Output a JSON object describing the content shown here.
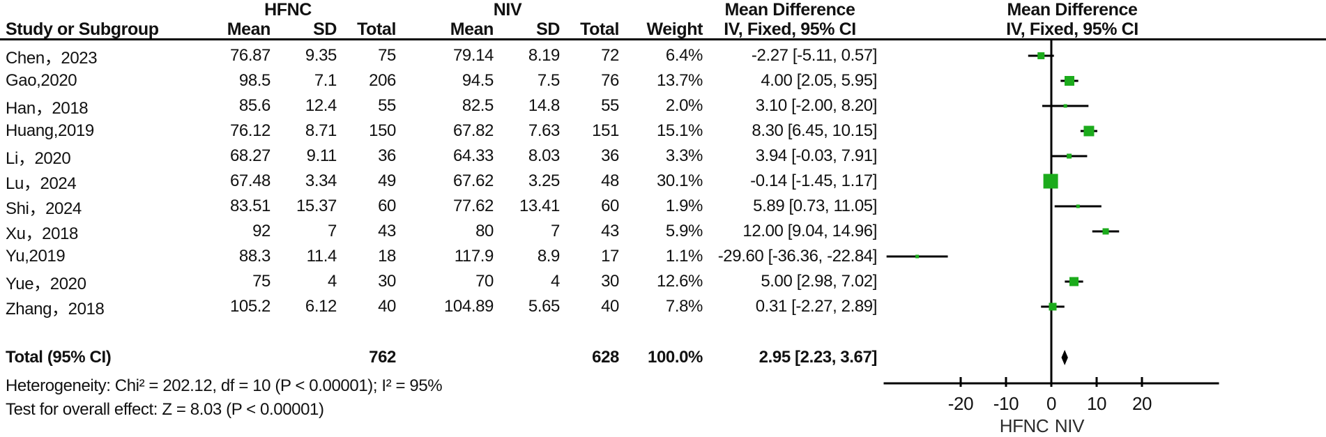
{
  "header": {
    "study_col": "Study or Subgroup",
    "group1": "HFNC",
    "group2": "NIV",
    "sub_cols": {
      "mean": "Mean",
      "sd": "SD",
      "total": "Total",
      "weight": "Weight"
    },
    "md_title": "Mean Difference",
    "method": "IV, Fixed, 95% CI"
  },
  "chart_data": {
    "type": "forest",
    "effect_measure": "Mean Difference",
    "model": "IV, Fixed, 95% CI",
    "studies": [
      {
        "name": "Chen，2023",
        "hfnc_mean": "76.87",
        "hfnc_sd": "9.35",
        "hfnc_total": "75",
        "niv_mean": "79.14",
        "niv_sd": "8.19",
        "niv_total": "72",
        "weight": "6.4%",
        "weight_value": 6.4,
        "md": -2.27,
        "lo": -5.11,
        "hi": 0.57,
        "ci_label": "-2.27 [-5.11, 0.57]"
      },
      {
        "name": "Gao,2020",
        "hfnc_mean": "98.5",
        "hfnc_sd": "7.1",
        "hfnc_total": "206",
        "niv_mean": "94.5",
        "niv_sd": "7.5",
        "niv_total": "76",
        "weight": "13.7%",
        "weight_value": 13.7,
        "md": 4.0,
        "lo": 2.05,
        "hi": 5.95,
        "ci_label": "4.00 [2.05, 5.95]"
      },
      {
        "name": "Han，2018",
        "hfnc_mean": "85.6",
        "hfnc_sd": "12.4",
        "hfnc_total": "55",
        "niv_mean": "82.5",
        "niv_sd": "14.8",
        "niv_total": "55",
        "weight": "2.0%",
        "weight_value": 2.0,
        "md": 3.1,
        "lo": -2.0,
        "hi": 8.2,
        "ci_label": "3.10 [-2.00, 8.20]"
      },
      {
        "name": "Huang,2019",
        "hfnc_mean": "76.12",
        "hfnc_sd": "8.71",
        "hfnc_total": "150",
        "niv_mean": "67.82",
        "niv_sd": "7.63",
        "niv_total": "151",
        "weight": "15.1%",
        "weight_value": 15.1,
        "md": 8.3,
        "lo": 6.45,
        "hi": 10.15,
        "ci_label": "8.30 [6.45, 10.15]"
      },
      {
        "name": "Li，2020",
        "hfnc_mean": "68.27",
        "hfnc_sd": "9.11",
        "hfnc_total": "36",
        "niv_mean": "64.33",
        "niv_sd": "8.03",
        "niv_total": "36",
        "weight": "3.3%",
        "weight_value": 3.3,
        "md": 3.94,
        "lo": -0.03,
        "hi": 7.91,
        "ci_label": "3.94 [-0.03, 7.91]"
      },
      {
        "name": "Lu，2024",
        "hfnc_mean": "67.48",
        "hfnc_sd": "3.34",
        "hfnc_total": "49",
        "niv_mean": "67.62",
        "niv_sd": "3.25",
        "niv_total": "48",
        "weight": "30.1%",
        "weight_value": 30.1,
        "md": -0.14,
        "lo": -1.45,
        "hi": 1.17,
        "ci_label": "-0.14 [-1.45, 1.17]"
      },
      {
        "name": "Shi，2024",
        "hfnc_mean": "83.51",
        "hfnc_sd": "15.37",
        "hfnc_total": "60",
        "niv_mean": "77.62",
        "niv_sd": "13.41",
        "niv_total": "60",
        "weight": "1.9%",
        "weight_value": 1.9,
        "md": 5.89,
        "lo": 0.73,
        "hi": 11.05,
        "ci_label": "5.89 [0.73, 11.05]"
      },
      {
        "name": "Xu，2018",
        "hfnc_mean": "92",
        "hfnc_sd": "7",
        "hfnc_total": "43",
        "niv_mean": "80",
        "niv_sd": "7",
        "niv_total": "43",
        "weight": "5.9%",
        "weight_value": 5.9,
        "md": 12.0,
        "lo": 9.04,
        "hi": 14.96,
        "ci_label": "12.00 [9.04, 14.96]"
      },
      {
        "name": "Yu,2019",
        "hfnc_mean": "88.3",
        "hfnc_sd": "11.4",
        "hfnc_total": "18",
        "niv_mean": "117.9",
        "niv_sd": "8.9",
        "niv_total": "17",
        "weight": "1.1%",
        "weight_value": 1.1,
        "md": -29.6,
        "lo": -36.36,
        "hi": -22.84,
        "ci_label": "-29.60 [-36.36, -22.84]"
      },
      {
        "name": "Yue，2020",
        "hfnc_mean": "75",
        "hfnc_sd": "4",
        "hfnc_total": "30",
        "niv_mean": "70",
        "niv_sd": "4",
        "niv_total": "30",
        "weight": "12.6%",
        "weight_value": 12.6,
        "md": 5.0,
        "lo": 2.98,
        "hi": 7.02,
        "ci_label": "5.00 [2.98, 7.02]"
      },
      {
        "name": "Zhang，2018",
        "hfnc_mean": "105.2",
        "hfnc_sd": "6.12",
        "hfnc_total": "40",
        "niv_mean": "104.89",
        "niv_sd": "5.65",
        "niv_total": "40",
        "weight": "7.8%",
        "weight_value": 7.8,
        "md": 0.31,
        "lo": -2.27,
        "hi": 2.89,
        "ci_label": "0.31 [-2.27, 2.89]"
      }
    ],
    "total": {
      "label": "Total (95% CI)",
      "hfnc_total": "762",
      "niv_total": "628",
      "weight": "100.0%",
      "md": 2.95,
      "lo": 2.23,
      "hi": 3.67,
      "ci_label": "2.95 [2.23, 3.67]"
    },
    "heterogeneity": "Heterogeneity: Chi² = 202.12, df = 10 (P < 0.00001); I² = 95%",
    "overall_effect": "Test for overall effect: Z = 8.03 (P < 0.00001)",
    "axis": {
      "ticks": [
        -20,
        -10,
        0,
        10,
        20
      ],
      "min": -37,
      "max": 37,
      "left_label": "HFNC",
      "right_label": "NIV"
    },
    "colors": {
      "marker": "#1cab1c",
      "diamond": "#000000",
      "line": "#000000"
    }
  }
}
